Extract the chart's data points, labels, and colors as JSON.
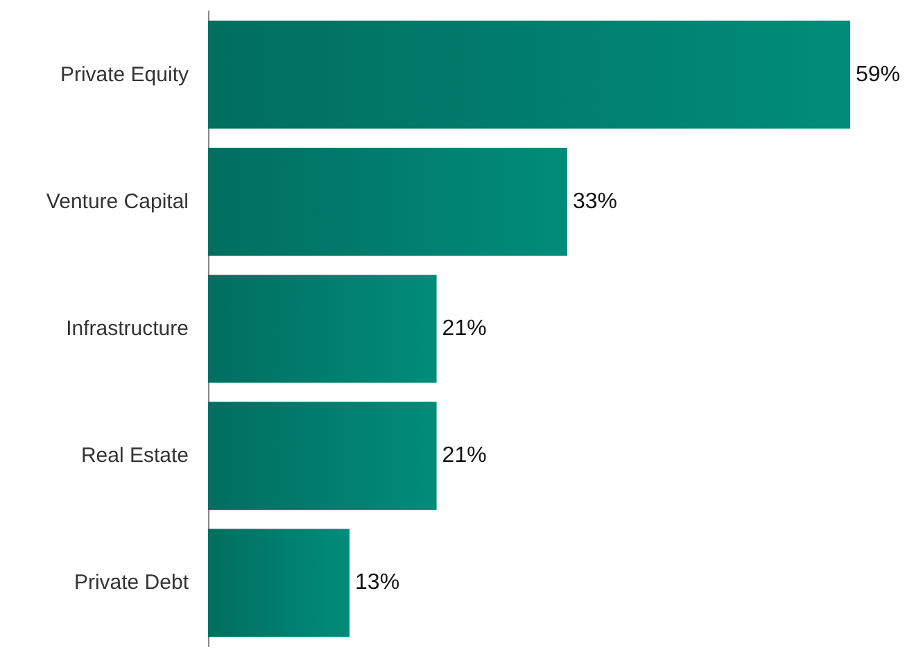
{
  "chart_data": {
    "type": "bar",
    "orientation": "horizontal",
    "categories": [
      "Private Equity",
      "Venture Capital",
      "Infrastructure",
      "Real Estate",
      "Private Debt"
    ],
    "values": [
      59,
      33,
      21,
      21,
      13
    ],
    "value_labels": [
      "59%",
      "33%",
      "21%",
      "21%",
      "13%"
    ],
    "color": "#016e60"
  }
}
